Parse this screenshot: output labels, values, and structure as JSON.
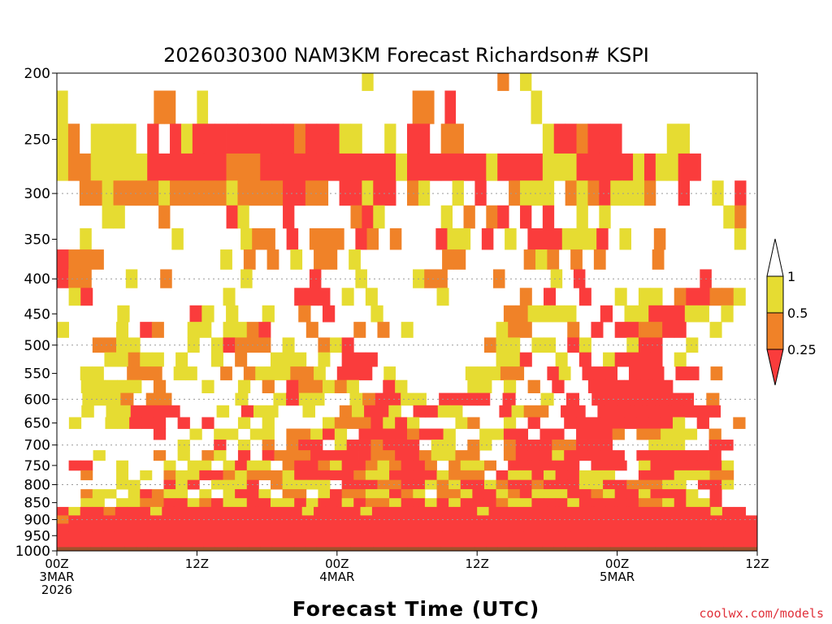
{
  "chart_data": {
    "type": "heatmap",
    "title": "2026030300 NAM3KM Forecast Richardson# KSPI",
    "xlabel": "Forecast Time (UTC)",
    "ylabel": "",
    "credit": "coolwx.com/models",
    "y_axis": {
      "scale": "log",
      "reversed": true,
      "ylim": [
        1000,
        200
      ],
      "ticks": [
        200,
        250,
        300,
        350,
        400,
        450,
        500,
        550,
        600,
        650,
        700,
        750,
        800,
        850,
        900,
        950,
        1000
      ],
      "gridlines": [
        300,
        400,
        500,
        600,
        700,
        800,
        900,
        1000
      ]
    },
    "x_axis": {
      "xlim": [
        0,
        60
      ],
      "ticks": [
        {
          "hour": 0,
          "lines": [
            "00Z",
            "3MAR",
            "2026"
          ]
        },
        {
          "hour": 12,
          "lines": [
            "12Z"
          ]
        },
        {
          "hour": 24,
          "lines": [
            "00Z",
            "4MAR"
          ]
        },
        {
          "hour": 36,
          "lines": [
            "12Z"
          ]
        },
        {
          "hour": 48,
          "lines": [
            "00Z",
            "5MAR"
          ]
        },
        {
          "hour": 60,
          "lines": [
            "12Z"
          ]
        }
      ]
    },
    "legend": {
      "position": "right",
      "thresholds": [
        "1",
        "0.5",
        "0.25"
      ],
      "bins": [
        {
          "range": "> 1",
          "color": "#ffffff"
        },
        {
          "range": "0.5 - 1",
          "color": "#e6dc32"
        },
        {
          "range": "0.25 - 0.5",
          "color": "#f08228"
        },
        {
          "range": "< 0.25",
          "color": "#fa3c3c"
        }
      ]
    },
    "surface_color": "#a0522d",
    "time_step_hours": 1,
    "levels_hpa": [
      200,
      225,
      250,
      275,
      300,
      325,
      350,
      375,
      400,
      425,
      450,
      475,
      500,
      525,
      550,
      575,
      600,
      625,
      650,
      675,
      700,
      725,
      750,
      775,
      800,
      825,
      850,
      875,
      900,
      925,
      950,
      975,
      1000
    ],
    "richardson_category_rows_note": "",
    "rows": [
      {
        "p": 200,
        "cells": "...........................y...........o.y...................."
      },
      {
        "p": 225,
        "cells": "y........oo..y...................oo.r.......y...................."
      },
      {
        "p": 250,
        "cells": "yo.yyyy.r.ryrrrrrrrrrorrryy..y.rr.oo.......yrrorrr....yy......"
      },
      {
        "p": 275,
        "cells": "yooyyyyyrrrrrrrooorrrrrrrrrrrryrrrrrrryrrrryyyrrrrryryyrr....."
      },
      {
        "p": 300,
        "cells": "..ooyooooyoooooyoooorroo.rryrr.oy..y.r..oyyy.oyoryyyo..r..y.r."
      },
      {
        "p": 325,
        "cells": "....yy...o.....ry...r.....ory.....y.o.or.r.r..y.y..........yo."
      },
      {
        "p": 350,
        "cells": "..y.......y.....yoo.r.ooo.ro.o...ryy.r.y.rrryyyr.y..o......y."
      },
      {
        "p": 375,
        "cells": "rooo..........y.o.o.y.oo.y.......oo.....oyo.o.o....o........"
      },
      {
        "p": 400,
        "cells": "roo...y..o......y.....r...y....yoo....o....y.r..........r...."
      },
      {
        "p": 425,
        "cells": ".yr...........y.....rrr.y.y.....y......o.r..r..y.yy.orrooy."
      },
      {
        "p": 450,
        "cells": ".....y.....ry.y..y..o.r...y..........ooyyyy..r.yyrrryy.y.."
      },
      {
        "p": 475,
        "cells": "y....y.ro..yy.yyor...o...o.o.y.......yoo...o.r.rroorr..y..."
      },
      {
        "p": 500,
        "cells": "...ooyy....y.yrooo.y..oyr...........oyy.yy.ry...yrr..y....."
      },
      {
        "p": 525,
        "cells": "....yyoyy.y..y.o..yyy.y.rrr..........yyr..y.r.yrrrr.y......"
      },
      {
        "p": 550,
        "cells": "..yy..ooo.yy..o.oyyyooy.rrr.y......yyyoo..ry.rrr.rrr.rr.o..."
      },
      {
        "p": 575,
        "cells": "..yyyyy.o...y..y.o.rooyoy..ry.....yy.y.o.r..rrrrrrr......."
      },
      {
        "p": 600,
        "cells": "..yyyo.oo.....y..yryy..yorryy.rrrr.r..y.r.rrrrrrrr.o..."
      },
      {
        "p": 625,
        "cells": "..y.yyrrrr...y.ryy..y..oyrry.rryy...ryoo.rr.rrrrrrrrrr..."
      },
      {
        "p": 650,
        "cells": ".y..yyrrr.r.r..y.y....yoooryry...yo..y.r..rrrrrrrrry.r..o."
      },
      {
        "p": 675,
        "cells": "........r..y.yy.yy.ooyry.rrrrorry..yyrr.rr.rrro.ooyyy.o..."
      },
      {
        "p": 700,
        "cells": "..........y..r.y.o.orr.yrrorrr.yy.oy.orrroorrr...yyy..rr.."
      },
      {
        "p": 725,
        "cells": "...y....o.y.oy.r.rooorrrrroorroyyoo..orrryrrrrr.rrrrrrr..."
      },
      {
        "p": 750,
        "cells": ".rr..y...y.yy.yryy.orroyrroyorro.oyyo.rrrrrr.rrr.yrrrrrry.."
      },
      {
        "p": 775,
        "cells": "..o..y.y.oyyrroyoooyrrrrroyyrrrryooo.ryyryrryyy..rrryyyoo.."
      },
      {
        "p": 800,
        "cells": ".....yy..ryr.yyyr.oyyyy.rrroorryoyrryorrorrryyrroooyy.rry.."
      },
      {
        "p": 825,
        "cells": "..oyy.yroyy.y.yrry.oo.yrooyyroy.ooyrryoryyyrroyrryrrry.r..."
      },
      {
        "p": 850,
        "cells": "..yy.yyoorryoryyrryyryrryrooyrryryrrroyyrrryrrrrrooyryyr..."
      },
      {
        "p": 875,
        "cells": "ryrrorrryrrrrrrrrrrrryrrrryrrrrrrrrryrrrrrrrrrrrrrrrrrrryrr."
      },
      {
        "p": 900,
        "cells": "orrrrrrrrrrrrrrrrrrrrrrrrrrrrrrrrrrrrrrrrrrrrrrrrrrrrrrrrrrr"
      },
      {
        "p": 925,
        "cells": "rrrrrrrrrrrrrrrrrrrrrrrrrrrrrrrrrrrrrrrrrrrrrrrrrrrrrrrrrrrr"
      },
      {
        "p": 950,
        "cells": "rrrrrrrrrrrrrrrrrrrrrrrrrrrrrrrrrrrrrrrrrrrrrrrrrrrrrrrrrrrr"
      },
      {
        "p": 975,
        "cells": "rrrrrrrrrrrrrrrrrrrrrrrrrrrrrrrrrrrrrrrrrrrrrrrrrrrrrrrrrrrr"
      },
      {
        "p": 1000,
        "cells": "ssssssssssssssssssssssssssssssssssssssssssssssssssssssssssssss"
      }
    ]
  }
}
